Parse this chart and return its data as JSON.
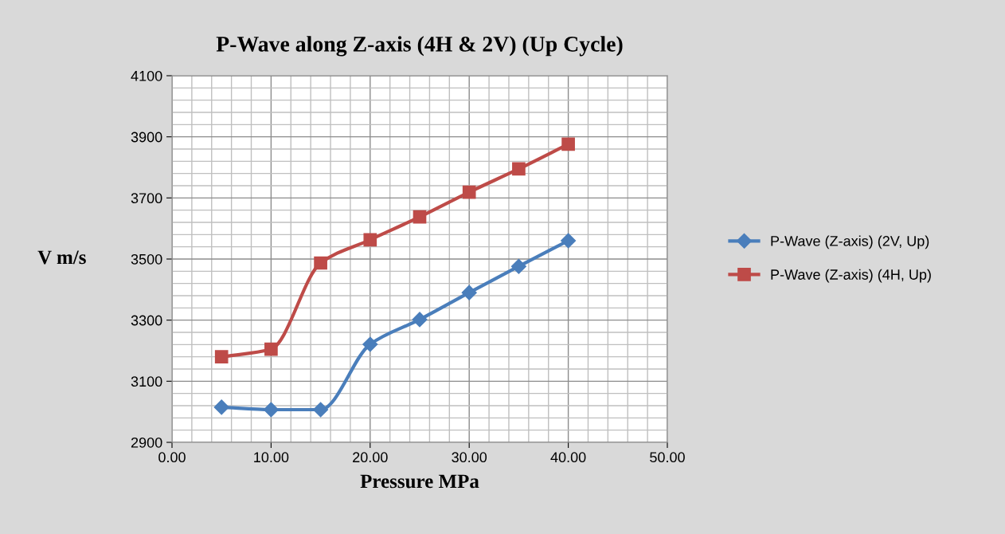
{
  "chart_data": {
    "type": "line",
    "title": "P-Wave along Z-axis (4H & 2V) (Up Cycle)",
    "xlabel": "Pressure MPa",
    "ylabel": "V m/s",
    "x": [
      5,
      10,
      15,
      20,
      25,
      30,
      35,
      40
    ],
    "series": [
      {
        "name": "P-Wave (Z-axis) (2V, Up)",
        "color": "#4a7ebb",
        "marker": "diamond",
        "values": [
          3015,
          3007,
          3007,
          3221,
          3302,
          3390,
          3476,
          3560
        ]
      },
      {
        "name": "P-Wave (Z-axis) (4H, Up)",
        "color": "#be4b48",
        "marker": "square",
        "values": [
          3180,
          3205,
          3487,
          3563,
          3638,
          3719,
          3795,
          3876
        ]
      }
    ],
    "xlim": [
      0,
      50
    ],
    "xticks": [
      {
        "value": 0,
        "label": "0.00"
      },
      {
        "value": 10,
        "label": "10.00"
      },
      {
        "value": 20,
        "label": "20.00"
      },
      {
        "value": 30,
        "label": "30.00"
      },
      {
        "value": 40,
        "label": "40.00"
      },
      {
        "value": 50,
        "label": "50.00"
      }
    ],
    "ylim": [
      2900,
      4100
    ],
    "yticks": [
      2900,
      3100,
      3300,
      3500,
      3700,
      3900,
      4100
    ],
    "grid": true,
    "legend": "right",
    "line_style": "solid"
  }
}
